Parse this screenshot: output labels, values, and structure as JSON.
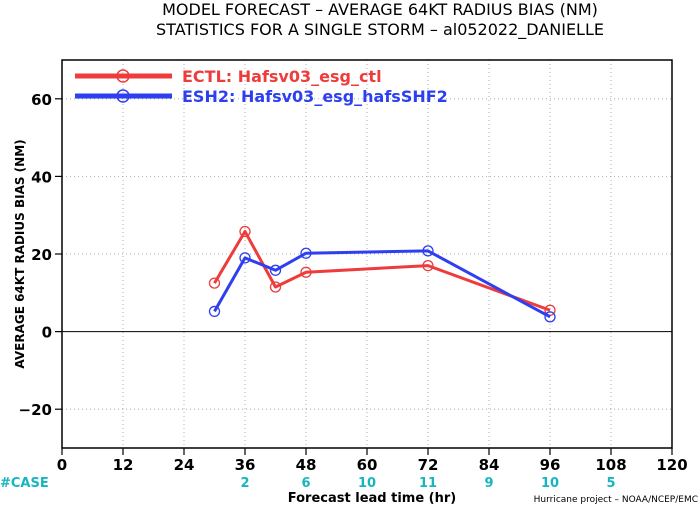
{
  "chart_data": {
    "type": "line",
    "title": [
      "MODEL FORECAST – AVERAGE 64KT RADIUS BIAS (NM)",
      "STATISTICS FOR A SINGLE STORM – al052022_DANIELLE"
    ],
    "xlabel": "Forecast lead time (hr)",
    "ylabel": "AVERAGE 64KT RADIUS BIAS (NM)",
    "xlim": [
      0,
      120
    ],
    "ylim": [
      -30,
      70
    ],
    "xticks": [
      0,
      12,
      24,
      36,
      48,
      60,
      72,
      84,
      96,
      108,
      120
    ],
    "yticks": [
      -20,
      0,
      20,
      40,
      60
    ],
    "grid": true,
    "legend_position": "top-left",
    "series": [
      {
        "name": "ECTL: Hafsv03_esg_ctl",
        "color": "#ee3b3b",
        "x": [
          30,
          36,
          42,
          48,
          72,
          96
        ],
        "y": [
          12.5,
          25.8,
          11.5,
          15.3,
          17.0,
          5.5
        ]
      },
      {
        "name": "ESH2: Hafsv03_esg_hafsSHF2",
        "color": "#2e3ff0",
        "x": [
          30,
          36,
          42,
          48,
          72,
          96
        ],
        "y": [
          5.2,
          19.0,
          15.8,
          20.2,
          20.8,
          3.8
        ]
      }
    ],
    "case_label": "#CASE",
    "case_counts": [
      {
        "x": 36,
        "n": "2"
      },
      {
        "x": 48,
        "n": "6"
      },
      {
        "x": 60,
        "n": "10"
      },
      {
        "x": 72,
        "n": "11"
      },
      {
        "x": 84,
        "n": "9"
      },
      {
        "x": 96,
        "n": "10"
      },
      {
        "x": 108,
        "n": "5"
      }
    ],
    "credit": "Hurricane project – NOAA/NCEP/EMC"
  }
}
